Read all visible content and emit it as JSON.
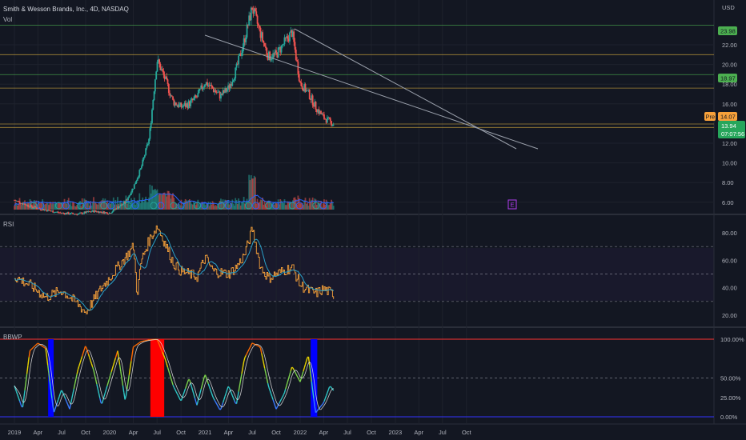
{
  "header": {
    "symbol_title": "Smith & Wesson Brands, Inc., 4D, NASDAQ",
    "vol_label": "Vol",
    "currency": "USD"
  },
  "colors": {
    "background": "#131722",
    "up": "#26a69a",
    "down": "#ef5350",
    "hline_green": "#4caf50",
    "hline_orange": "#c8a23c",
    "trendline": "#9aa0ab",
    "rsi_line": "#f7a13a",
    "rsi_ma": "#29a0c8",
    "bbwp_high": "#ff0000",
    "bbwp_low": "#0000ff"
  },
  "price_panel": {
    "y_ticks": [
      "22.00",
      "20.00",
      "18.00",
      "16.00",
      "12.00",
      "10.00",
      "8.00",
      "6.00"
    ],
    "badges": {
      "level_high": "23.98",
      "level_mid": "18.97",
      "pre_label": "Pre",
      "pre_price": "14.07",
      "last_price": "13.94",
      "countdown": "07:07:56"
    },
    "horizontal_levels": [
      23.98,
      21.0,
      18.97,
      17.6,
      13.95,
      13.6
    ],
    "earnings_marker": "E"
  },
  "rsi_panel": {
    "label": "RSI",
    "y_ticks": [
      "80.00",
      "60.00",
      "40.00",
      "20.00"
    ],
    "levels": [
      70,
      50,
      30
    ]
  },
  "bbwp_panel": {
    "label": "BBWP",
    "y_ticks": [
      "100.00%",
      "50.00%",
      "25.00%",
      "0.00%"
    ],
    "levels": [
      100,
      50,
      0
    ]
  },
  "x_axis": {
    "ticks": [
      "2019",
      "Apr",
      "Jul",
      "Oct",
      "2020",
      "Apr",
      "Jul",
      "Oct",
      "2021",
      "Apr",
      "Jul",
      "Oct",
      "2022",
      "Apr",
      "Jul",
      "Oct",
      "2023",
      "Apr",
      "Jul",
      "Oct"
    ]
  },
  "chart_data": {
    "type": "candlestick",
    "symbol": "Smith & Wesson Brands, Inc., 4D, NASDAQ",
    "price_anchors": [
      [
        "2019-01-01",
        6.2
      ],
      [
        "2019-03-01",
        5.6
      ],
      [
        "2019-05-01",
        5.2
      ],
      [
        "2019-07-01",
        4.9
      ],
      [
        "2019-09-01",
        4.8
      ],
      [
        "2019-11-01",
        5.1
      ],
      [
        "2020-01-01",
        4.9
      ],
      [
        "2020-03-01",
        6.0
      ],
      [
        "2020-04-01",
        7.5
      ],
      [
        "2020-05-01",
        9.5
      ],
      [
        "2020-06-01",
        12.5
      ],
      [
        "2020-07-01",
        20.5
      ],
      [
        "2020-08-01",
        18.5
      ],
      [
        "2020-09-01",
        16.2
      ],
      [
        "2020-10-01",
        15.7
      ],
      [
        "2020-11-01",
        16.0
      ],
      [
        "2020-12-01",
        16.7
      ],
      [
        "2021-01-01",
        18.2
      ],
      [
        "2021-02-01",
        17.5
      ],
      [
        "2021-03-01",
        16.8
      ],
      [
        "2021-04-01",
        17.6
      ],
      [
        "2021-05-01",
        19.5
      ],
      [
        "2021-06-01",
        22.5
      ],
      [
        "2021-07-01",
        25.8
      ],
      [
        "2021-08-01",
        23.2
      ],
      [
        "2021-09-01",
        20.8
      ],
      [
        "2021-10-01",
        21.0
      ],
      [
        "2021-11-01",
        22.2
      ],
      [
        "2021-12-01",
        23.3
      ],
      [
        "2022-01-01",
        18.1
      ],
      [
        "2022-02-01",
        17.1
      ],
      [
        "2022-03-01",
        15.7
      ],
      [
        "2022-04-01",
        14.6
      ],
      [
        "2022-05-09",
        13.94
      ]
    ],
    "volume_baseline": 5.0,
    "rsi_anchors": [
      [
        "2019-01-01",
        48
      ],
      [
        "2019-03-01",
        42
      ],
      [
        "2019-05-01",
        33
      ],
      [
        "2019-07-01",
        38
      ],
      [
        "2019-09-01",
        28
      ],
      [
        "2019-10-01",
        22
      ],
      [
        "2019-12-01",
        40
      ],
      [
        "2020-02-01",
        55
      ],
      [
        "2020-03-01",
        62
      ],
      [
        "2020-04-01",
        70
      ],
      [
        "2020-04-15",
        35
      ],
      [
        "2020-05-01",
        60
      ],
      [
        "2020-06-01",
        75
      ],
      [
        "2020-07-01",
        85
      ],
      [
        "2020-08-01",
        72
      ],
      [
        "2020-09-01",
        58
      ],
      [
        "2020-10-01",
        52
      ],
      [
        "2020-12-01",
        48
      ],
      [
        "2021-01-01",
        62
      ],
      [
        "2021-02-01",
        52
      ],
      [
        "2021-04-01",
        50
      ],
      [
        "2021-05-01",
        55
      ],
      [
        "2021-06-01",
        64
      ],
      [
        "2021-07-01",
        83
      ],
      [
        "2021-08-01",
        55
      ],
      [
        "2021-09-01",
        47
      ],
      [
        "2021-10-01",
        50
      ],
      [
        "2021-12-01",
        55
      ],
      [
        "2022-01-01",
        42
      ],
      [
        "2022-02-01",
        38
      ],
      [
        "2022-03-01",
        36
      ],
      [
        "2022-04-01",
        39
      ],
      [
        "2022-05-09",
        35
      ]
    ],
    "bbwp_anchors": [
      [
        "2019-01-01",
        40
      ],
      [
        "2019-02-01",
        10
      ],
      [
        "2019-03-01",
        85
      ],
      [
        "2019-04-01",
        95
      ],
      [
        "2019-05-01",
        88
      ],
      [
        "2019-06-01",
        5
      ],
      [
        "2019-07-01",
        35
      ],
      [
        "2019-08-01",
        10
      ],
      [
        "2019-09-01",
        60
      ],
      [
        "2019-10-01",
        92
      ],
      [
        "2019-11-01",
        60
      ],
      [
        "2019-12-01",
        15
      ],
      [
        "2020-01-01",
        50
      ],
      [
        "2020-02-01",
        85
      ],
      [
        "2020-03-01",
        20
      ],
      [
        "2020-04-01",
        90
      ],
      [
        "2020-05-01",
        97
      ],
      [
        "2020-06-01",
        99
      ],
      [
        "2020-07-01",
        100
      ],
      [
        "2020-08-01",
        75
      ],
      [
        "2020-09-01",
        40
      ],
      [
        "2020-10-01",
        20
      ],
      [
        "2020-11-01",
        50
      ],
      [
        "2020-12-01",
        15
      ],
      [
        "2021-01-01",
        55
      ],
      [
        "2021-02-01",
        25
      ],
      [
        "2021-03-01",
        8
      ],
      [
        "2021-04-01",
        40
      ],
      [
        "2021-05-01",
        15
      ],
      [
        "2021-06-01",
        75
      ],
      [
        "2021-07-01",
        95
      ],
      [
        "2021-08-01",
        90
      ],
      [
        "2021-09-01",
        40
      ],
      [
        "2021-10-01",
        10
      ],
      [
        "2021-11-01",
        30
      ],
      [
        "2021-12-01",
        65
      ],
      [
        "2022-01-01",
        45
      ],
      [
        "2022-02-01",
        80
      ],
      [
        "2022-03-01",
        5
      ],
      [
        "2022-04-01",
        18
      ],
      [
        "2022-04-25",
        40
      ],
      [
        "2022-05-09",
        34
      ]
    ],
    "bbwp_high_bars": [
      [
        "2020-06-10",
        "2020-07-25"
      ]
    ],
    "bbwp_low_bars": [
      [
        "2019-05-15",
        "2019-05-28"
      ],
      [
        "2022-02-15",
        "2022-03-05"
      ]
    ]
  }
}
